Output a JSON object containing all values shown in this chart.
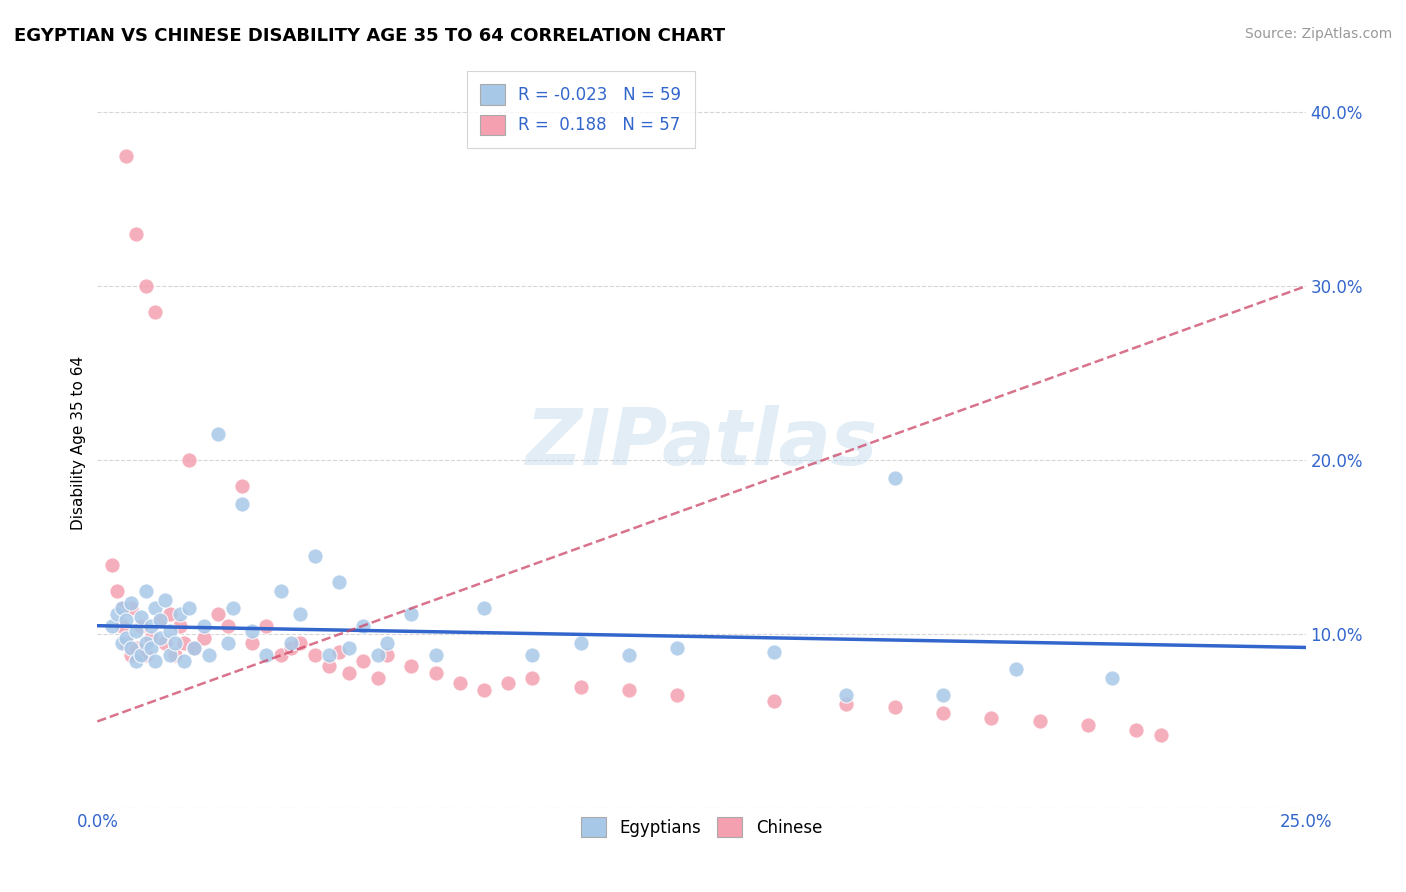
{
  "title": "EGYPTIAN VS CHINESE DISABILITY AGE 35 TO 64 CORRELATION CHART",
  "source": "Source: ZipAtlas.com",
  "ylabel": "Disability Age 35 to 64",
  "xlim": [
    0.0,
    0.25
  ],
  "ylim": [
    0.0,
    0.42
  ],
  "egyptian_R": -0.023,
  "egyptian_N": 59,
  "chinese_R": 0.188,
  "chinese_N": 57,
  "egyptian_color": "#a8c8e8",
  "chinese_color": "#f4a0b0",
  "egyptian_line_color": "#3366cc",
  "chinese_line_color": "#cc4466",
  "watermark": "ZIPatlas",
  "egyptian_x": [
    0.003,
    0.004,
    0.005,
    0.005,
    0.006,
    0.006,
    0.007,
    0.007,
    0.008,
    0.008,
    0.009,
    0.009,
    0.01,
    0.01,
    0.011,
    0.011,
    0.012,
    0.012,
    0.013,
    0.013,
    0.014,
    0.015,
    0.015,
    0.016,
    0.017,
    0.018,
    0.019,
    0.02,
    0.022,
    0.023,
    0.025,
    0.027,
    0.028,
    0.03,
    0.032,
    0.035,
    0.038,
    0.04,
    0.042,
    0.045,
    0.048,
    0.05,
    0.052,
    0.055,
    0.058,
    0.06,
    0.065,
    0.07,
    0.08,
    0.09,
    0.1,
    0.11,
    0.12,
    0.14,
    0.155,
    0.165,
    0.175,
    0.19,
    0.21
  ],
  "egyptian_y": [
    0.105,
    0.112,
    0.095,
    0.115,
    0.098,
    0.108,
    0.092,
    0.118,
    0.085,
    0.102,
    0.11,
    0.088,
    0.125,
    0.095,
    0.105,
    0.092,
    0.115,
    0.085,
    0.098,
    0.108,
    0.12,
    0.088,
    0.102,
    0.095,
    0.112,
    0.085,
    0.115,
    0.092,
    0.105,
    0.088,
    0.215,
    0.095,
    0.115,
    0.175,
    0.102,
    0.088,
    0.125,
    0.095,
    0.112,
    0.145,
    0.088,
    0.13,
    0.092,
    0.105,
    0.088,
    0.095,
    0.112,
    0.088,
    0.115,
    0.088,
    0.095,
    0.088,
    0.092,
    0.09,
    0.065,
    0.19,
    0.065,
    0.08,
    0.075
  ],
  "chinese_x": [
    0.003,
    0.004,
    0.005,
    0.005,
    0.006,
    0.006,
    0.007,
    0.007,
    0.008,
    0.008,
    0.009,
    0.01,
    0.01,
    0.011,
    0.012,
    0.013,
    0.014,
    0.015,
    0.016,
    0.017,
    0.018,
    0.019,
    0.02,
    0.022,
    0.025,
    0.027,
    0.03,
    0.032,
    0.035,
    0.038,
    0.04,
    0.042,
    0.045,
    0.048,
    0.05,
    0.052,
    0.055,
    0.058,
    0.06,
    0.065,
    0.07,
    0.075,
    0.08,
    0.085,
    0.09,
    0.1,
    0.11,
    0.12,
    0.14,
    0.155,
    0.165,
    0.175,
    0.185,
    0.195,
    0.205,
    0.215,
    0.22
  ],
  "chinese_y": [
    0.14,
    0.125,
    0.115,
    0.105,
    0.375,
    0.095,
    0.115,
    0.088,
    0.33,
    0.092,
    0.105,
    0.3,
    0.088,
    0.098,
    0.285,
    0.108,
    0.095,
    0.112,
    0.088,
    0.105,
    0.095,
    0.2,
    0.092,
    0.098,
    0.112,
    0.105,
    0.185,
    0.095,
    0.105,
    0.088,
    0.092,
    0.095,
    0.088,
    0.082,
    0.09,
    0.078,
    0.085,
    0.075,
    0.088,
    0.082,
    0.078,
    0.072,
    0.068,
    0.072,
    0.075,
    0.07,
    0.068,
    0.065,
    0.062,
    0.06,
    0.058,
    0.055,
    0.052,
    0.05,
    0.048,
    0.045,
    0.042
  ]
}
